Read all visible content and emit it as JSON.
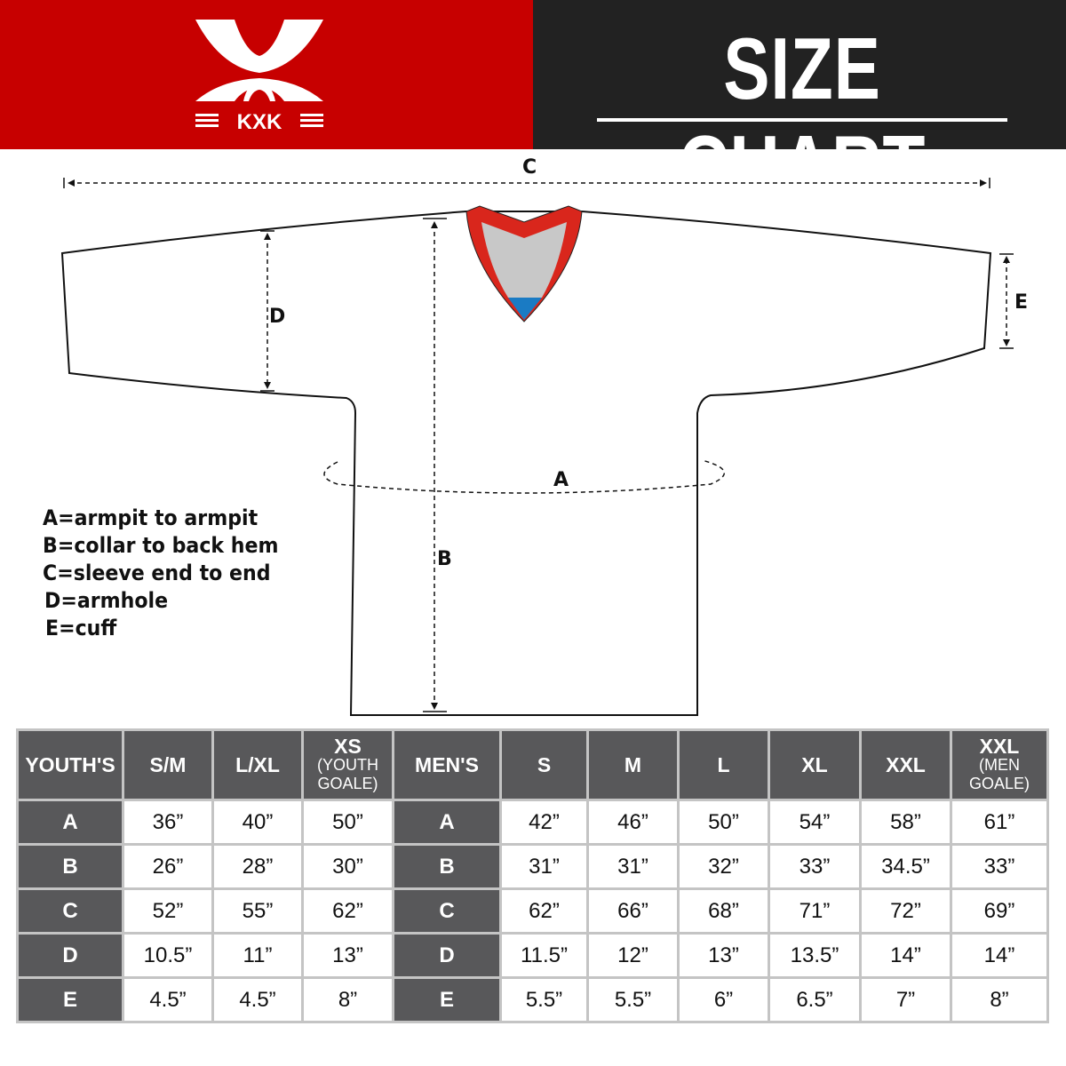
{
  "header": {
    "brand": "KXK",
    "title": "SIZE CHART",
    "colors": {
      "red": "#c70000",
      "dark": "#222222"
    }
  },
  "diagram": {
    "labels": {
      "A": "A",
      "B": "B",
      "C": "C",
      "D": "D",
      "E": "E"
    },
    "legend": [
      "A=armpit to armpit",
      "B=collar to back hem",
      "C=sleeve end to end",
      "D=armhole",
      "E=cuff"
    ]
  },
  "table": {
    "youth": {
      "header": "YOUTH'S",
      "sizes": [
        {
          "main": "S/M",
          "sub": ""
        },
        {
          "main": "L/XL",
          "sub": ""
        },
        {
          "main": "XS",
          "sub": "(YOUTH GOALE)"
        }
      ],
      "rows": [
        {
          "label": "A",
          "values": [
            "36”",
            "40”",
            "50”"
          ]
        },
        {
          "label": "B",
          "values": [
            "26”",
            "28”",
            "30”"
          ]
        },
        {
          "label": "C",
          "values": [
            "52”",
            "55”",
            "62”"
          ]
        },
        {
          "label": "D",
          "values": [
            "10.5”",
            "11”",
            "13”"
          ]
        },
        {
          "label": "E",
          "values": [
            "4.5”",
            "4.5”",
            "8”"
          ]
        }
      ]
    },
    "men": {
      "header": "MEN'S",
      "sizes": [
        {
          "main": "S",
          "sub": ""
        },
        {
          "main": "M",
          "sub": ""
        },
        {
          "main": "L",
          "sub": ""
        },
        {
          "main": "XL",
          "sub": ""
        },
        {
          "main": "XXL",
          "sub": ""
        },
        {
          "main": "XXL",
          "sub": "(MEN GOALE)"
        }
      ],
      "rows": [
        {
          "label": "A",
          "values": [
            "42”",
            "46”",
            "50”",
            "54”",
            "58”",
            "61”"
          ]
        },
        {
          "label": "B",
          "values": [
            "31”",
            "31”",
            "32”",
            "33”",
            "34.5”",
            "33”"
          ]
        },
        {
          "label": "C",
          "values": [
            "62”",
            "66”",
            "68”",
            "71”",
            "72”",
            "69”"
          ]
        },
        {
          "label": "D",
          "values": [
            "11.5”",
            "12”",
            "13”",
            "13.5”",
            "14”",
            "14”"
          ]
        },
        {
          "label": "E",
          "values": [
            "5.5”",
            "5.5”",
            "6”",
            "6.5”",
            "7”",
            "8”"
          ]
        }
      ]
    }
  }
}
